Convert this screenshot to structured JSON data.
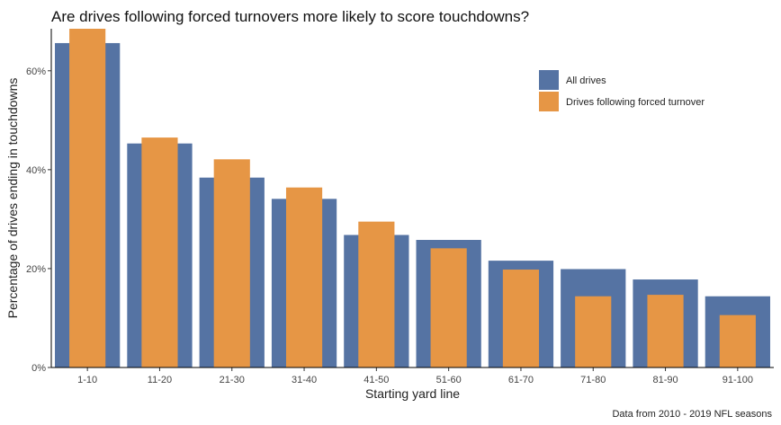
{
  "chart_data": {
    "type": "bar",
    "title": "Are drives following forced turnovers more likely to score touchdowns?",
    "xlabel": "Starting yard line",
    "ylabel": "Percentage of drives ending in touchdowns",
    "caption": "Data from 2010 - 2019 NFL seasons",
    "categories": [
      "1-10",
      "11-20",
      "21-30",
      "31-40",
      "41-50",
      "51-60",
      "61-70",
      "71-80",
      "81-90",
      "91-100"
    ],
    "series": [
      {
        "name": "All drives",
        "color": "#5573a3",
        "values": [
          65.6,
          45.3,
          38.4,
          34.1,
          26.8,
          25.8,
          21.6,
          19.9,
          17.8,
          14.4
        ]
      },
      {
        "name": "Drives following forced turnover",
        "color": "#e69645",
        "values": [
          68.5,
          46.5,
          42.1,
          36.4,
          29.5,
          24.1,
          19.8,
          14.4,
          14.7,
          10.6
        ]
      }
    ],
    "ylim": [
      0,
      68.5
    ],
    "yticks": [
      0,
      20,
      40,
      60
    ],
    "ytick_labels": [
      "0%",
      "20%",
      "40%",
      "60%"
    ],
    "legend_position": "top-right",
    "grid": false
  }
}
